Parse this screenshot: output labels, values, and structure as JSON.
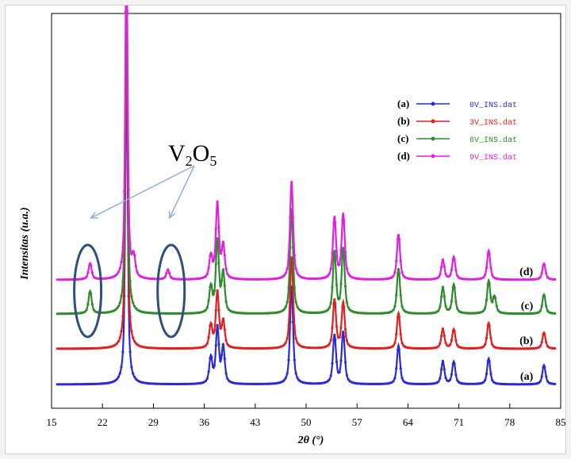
{
  "chart_data": {
    "type": "line",
    "xlabel": "2θ (°)",
    "ylabel": "Intensitas (u.a.)",
    "xlim": [
      15,
      85
    ],
    "xticks": [
      15,
      22,
      29,
      36,
      43,
      50,
      57,
      64,
      71,
      78,
      85
    ],
    "yticks_shown": false,
    "grid": false,
    "legend_position": "top-right",
    "series": [
      {
        "label": "(a)",
        "name": "0V_INS.dat",
        "color": "#2b2bd4",
        "offset": 0,
        "marker": "square",
        "peaks": [
          [
            25.3,
            100
          ],
          [
            36.9,
            8
          ],
          [
            37.8,
            17
          ],
          [
            38.6,
            11
          ],
          [
            48.0,
            30
          ],
          [
            53.9,
            15
          ],
          [
            55.1,
            16
          ],
          [
            62.7,
            12
          ],
          [
            68.8,
            7
          ],
          [
            70.3,
            7
          ],
          [
            75.1,
            8
          ],
          [
            82.7,
            6
          ]
        ]
      },
      {
        "label": "(b)",
        "name": "3V_INS.dat",
        "color": "#e02020",
        "offset": 45,
        "marker": "circle",
        "peaks": [
          [
            25.3,
            100
          ],
          [
            36.9,
            7
          ],
          [
            37.8,
            17
          ],
          [
            38.6,
            8
          ],
          [
            48.0,
            28
          ],
          [
            53.9,
            15
          ],
          [
            55.1,
            14
          ],
          [
            62.7,
            11
          ],
          [
            68.8,
            6
          ],
          [
            70.3,
            6
          ],
          [
            75.1,
            8
          ],
          [
            82.7,
            5
          ]
        ]
      },
      {
        "label": "(c)",
        "name": "6V_INS.dat",
        "color": "#2e8b2e",
        "offset": 89,
        "marker": "triangle",
        "peaks": [
          [
            20.3,
            7
          ],
          [
            25.3,
            100
          ],
          [
            36.9,
            8
          ],
          [
            37.8,
            22
          ],
          [
            38.6,
            12
          ],
          [
            48.0,
            32
          ],
          [
            53.9,
            19
          ],
          [
            55.1,
            20
          ],
          [
            62.7,
            14
          ],
          [
            68.8,
            8
          ],
          [
            70.3,
            9
          ],
          [
            75.1,
            10
          ],
          [
            75.9,
            5
          ],
          [
            82.7,
            6
          ]
        ]
      },
      {
        "label": "(d)",
        "name": "9V_INS.dat",
        "color": "#e020e0",
        "offset": 132,
        "marker": "diamond",
        "peaks": [
          [
            20.3,
            5
          ],
          [
            25.3,
            100
          ],
          [
            26.3,
            6
          ],
          [
            31.0,
            3
          ],
          [
            36.9,
            7
          ],
          [
            37.8,
            23
          ],
          [
            38.6,
            10
          ],
          [
            48.0,
            30
          ],
          [
            53.9,
            19
          ],
          [
            55.1,
            20
          ],
          [
            62.7,
            14
          ],
          [
            68.8,
            6
          ],
          [
            70.3,
            7
          ],
          [
            75.1,
            9
          ],
          [
            82.7,
            5
          ]
        ]
      }
    ],
    "annotations": [
      {
        "text": "V",
        "subscript1": "2",
        "mid": "O",
        "subscript2": "5",
        "points_to": [
          20.3,
          31.0
        ]
      }
    ]
  }
}
